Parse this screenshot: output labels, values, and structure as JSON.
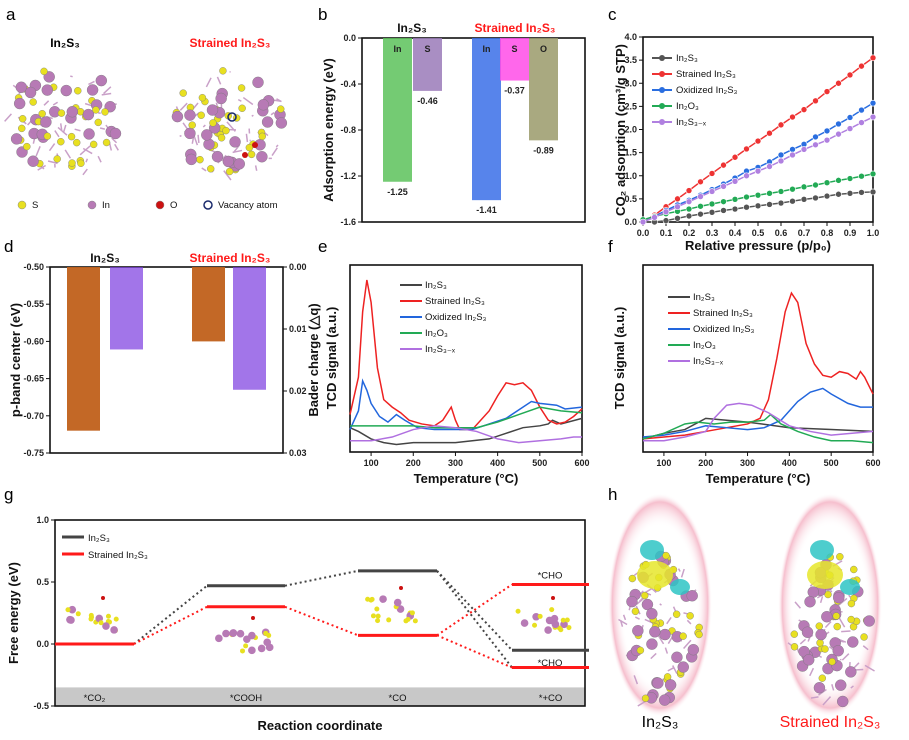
{
  "panels": {
    "a": "a",
    "b": "b",
    "c": "c",
    "d": "d",
    "e": "e",
    "f": "f",
    "g": "g",
    "h": "h"
  },
  "colors": {
    "accent_red": "#ff1a1a",
    "black": "#444444",
    "S_atom": "#e8e020",
    "In_atom": "#b77ab5",
    "O_atom": "#cc1111",
    "vacancy": "#1a2a6c",
    "isosurface_yellow": "#e6e62a",
    "isosurface_cyan": "#2ec4c4",
    "halo": "#f5b8c8"
  },
  "panel_a": {
    "labels": [
      "In₂S₃",
      "Strained In₂S₃"
    ],
    "legend": [
      {
        "label": "S",
        "icon": "yellow-sphere"
      },
      {
        "label": "In",
        "icon": "purple-sphere"
      },
      {
        "label": "O",
        "icon": "red-sphere"
      },
      {
        "label": "Vacancy atom",
        "icon": "hollow-circle"
      }
    ]
  },
  "panel_h": {
    "labels": [
      "In₂S₃",
      "Strained In₂S₃"
    ]
  },
  "chart_data": [
    {
      "id": "b",
      "type": "bar",
      "ylabel": "Adsorption energy (eV)",
      "ylim": [
        -1.6,
        0
      ],
      "yticks": [
        "0.0",
        "-0.4",
        "-0.8",
        "-1.2",
        "-1.6"
      ],
      "groups": [
        {
          "name": "In₂S₃",
          "bars": [
            {
              "site": "In",
              "value": -1.25,
              "label": "-1.25",
              "color": "#5cc25a"
            },
            {
              "site": "S",
              "value": -0.46,
              "label": "-0.46",
              "color": "#9a7ab8"
            }
          ]
        },
        {
          "name": "Strained In₂S₃",
          "bars": [
            {
              "site": "In",
              "value": -1.41,
              "label": "-1.41",
              "color": "#3a6ee8"
            },
            {
              "site": "S",
              "value": -0.37,
              "label": "-0.37",
              "color": "#ff4ce8"
            },
            {
              "site": "O",
              "value": -0.89,
              "label": "-0.89",
              "color": "#9a9a6a"
            }
          ]
        }
      ]
    },
    {
      "id": "c",
      "type": "line",
      "xlabel": "Relative pressure (p/p₀)",
      "ylabel": "CO₂ adsorption (cm³/g STP)",
      "xlim": [
        0,
        1
      ],
      "ylim": [
        0,
        4
      ],
      "xticks": [
        "0.0",
        "0.1",
        "0.2",
        "0.3",
        "0.4",
        "0.5",
        "0.6",
        "0.7",
        "0.8",
        "0.9",
        "1.0"
      ],
      "yticks": [
        "0.0",
        "0.5",
        "1.0",
        "1.5",
        "2.0",
        "2.5",
        "3.0",
        "3.5",
        "4.0"
      ],
      "legend": "top-left",
      "x": [
        0,
        0.05,
        0.1,
        0.15,
        0.2,
        0.25,
        0.3,
        0.35,
        0.4,
        0.45,
        0.5,
        0.55,
        0.6,
        0.65,
        0.7,
        0.75,
        0.8,
        0.85,
        0.9,
        0.95,
        1.0
      ],
      "series": [
        {
          "name": "In₂S₃",
          "color": "#555555",
          "values": [
            0,
            0,
            0.03,
            0.08,
            0.13,
            0.17,
            0.21,
            0.25,
            0.28,
            0.32,
            0.35,
            0.38,
            0.41,
            0.45,
            0.49,
            0.52,
            0.56,
            0.6,
            0.62,
            0.64,
            0.65
          ]
        },
        {
          "name": "Strained In₂S₃",
          "color": "#ee3333",
          "values": [
            0,
            0.15,
            0.33,
            0.5,
            0.68,
            0.87,
            1.05,
            1.23,
            1.4,
            1.58,
            1.75,
            1.92,
            2.1,
            2.27,
            2.43,
            2.62,
            2.82,
            3.0,
            3.18,
            3.37,
            3.55
          ]
        },
        {
          "name": "Oxidized In₂S₃",
          "color": "#2a6ee0",
          "values": [
            0,
            0.12,
            0.25,
            0.37,
            0.47,
            0.58,
            0.7,
            0.82,
            0.95,
            1.1,
            1.18,
            1.3,
            1.45,
            1.57,
            1.68,
            1.84,
            1.97,
            2.12,
            2.26,
            2.42,
            2.57
          ]
        },
        {
          "name": "In₂O₃",
          "color": "#22aa55",
          "values": [
            0.05,
            0.12,
            0.18,
            0.23,
            0.28,
            0.34,
            0.39,
            0.44,
            0.49,
            0.54,
            0.58,
            0.62,
            0.66,
            0.71,
            0.76,
            0.8,
            0.85,
            0.9,
            0.94,
            0.99,
            1.04
          ]
        },
        {
          "name": "In₂S₃₋ₓ",
          "color": "#b080e0",
          "values": [
            0,
            0.1,
            0.22,
            0.33,
            0.44,
            0.55,
            0.66,
            0.77,
            0.88,
            1.0,
            1.1,
            1.2,
            1.32,
            1.45,
            1.57,
            1.67,
            1.77,
            1.9,
            2.02,
            2.15,
            2.27
          ]
        }
      ]
    },
    {
      "id": "d",
      "type": "bar",
      "ylabel": "p-band center (eV)",
      "y2label": "Bader charge (△q)",
      "ylim": [
        -0.75,
        -0.5
      ],
      "y2lim": [
        0,
        0.03
      ],
      "yticks": [
        "-0.50",
        "-0.55",
        "-0.60",
        "-0.65",
        "-0.70",
        "-0.75"
      ],
      "y2ticks": [
        "0.00",
        "0.01",
        "0.02",
        "0.03"
      ],
      "categories": [
        "In₂S₃",
        "Strained In₂S₃"
      ],
      "series": [
        {
          "axis": "left",
          "color": "#c0601a",
          "values": [
            -0.72,
            -0.6
          ]
        },
        {
          "axis": "right",
          "color": "#7a3ae0",
          "values": [
            0.0133,
            0.0198
          ]
        }
      ]
    },
    {
      "id": "e",
      "type": "line",
      "xlabel": "Temperature (°C)",
      "ylabel": "TCD signal (a.u.)",
      "xlim": [
        50,
        600
      ],
      "ylim": [
        0,
        100
      ],
      "xticks": [
        "100",
        "200",
        "300",
        "400",
        "500",
        "600"
      ],
      "legend": "top-right",
      "series": [
        {
          "name": "In₂S₃",
          "color": "#444444",
          "points": [
            [
              50,
              13
            ],
            [
              70,
              11
            ],
            [
              100,
              7
            ],
            [
              130,
              5
            ],
            [
              160,
              4
            ],
            [
              200,
              5
            ],
            [
              300,
              5
            ],
            [
              380,
              7
            ],
            [
              420,
              10
            ],
            [
              460,
              13
            ],
            [
              500,
              14
            ],
            [
              520,
              15
            ],
            [
              530,
              17
            ],
            [
              550,
              15
            ],
            [
              600,
              18
            ]
          ]
        },
        {
          "name": "Strained In₂S₃",
          "color": "#ee2222",
          "points": [
            [
              50,
              20
            ],
            [
              70,
              40
            ],
            [
              80,
              75
            ],
            [
              90,
              92
            ],
            [
              100,
              80
            ],
            [
              115,
              45
            ],
            [
              130,
              28
            ],
            [
              150,
              24
            ],
            [
              170,
              21
            ],
            [
              190,
              17
            ],
            [
              220,
              15
            ],
            [
              250,
              14
            ],
            [
              270,
              17
            ],
            [
              290,
              24
            ],
            [
              300,
              17
            ],
            [
              310,
              12
            ],
            [
              340,
              12
            ],
            [
              380,
              22
            ],
            [
              400,
              30
            ],
            [
              420,
              37
            ],
            [
              440,
              36
            ],
            [
              460,
              37
            ],
            [
              480,
              33
            ],
            [
              500,
              24
            ],
            [
              520,
              17
            ],
            [
              540,
              15
            ],
            [
              560,
              16
            ],
            [
              580,
              19
            ],
            [
              600,
              23
            ]
          ]
        },
        {
          "name": "Oxidized In₂S₃",
          "color": "#2266dd",
          "points": [
            [
              50,
              12
            ],
            [
              70,
              22
            ],
            [
              80,
              38
            ],
            [
              90,
              33
            ],
            [
              100,
              26
            ],
            [
              120,
              19
            ],
            [
              140,
              16
            ],
            [
              160,
              20
            ],
            [
              180,
              17
            ],
            [
              210,
              13
            ],
            [
              250,
              12
            ],
            [
              300,
              12
            ],
            [
              340,
              12
            ],
            [
              380,
              15
            ],
            [
              420,
              18
            ],
            [
              460,
              24
            ],
            [
              480,
              27
            ],
            [
              500,
              26
            ],
            [
              540,
              25
            ],
            [
              560,
              23
            ],
            [
              600,
              24
            ]
          ]
        },
        {
          "name": "In₂O₃",
          "color": "#22aa55",
          "points": [
            [
              50,
              14
            ],
            [
              100,
              14
            ],
            [
              150,
              14
            ],
            [
              200,
              14
            ],
            [
              250,
              13
            ],
            [
              300,
              13
            ],
            [
              350,
              13
            ],
            [
              400,
              16
            ],
            [
              450,
              20
            ],
            [
              500,
              24
            ],
            [
              550,
              22
            ],
            [
              600,
              21
            ]
          ]
        },
        {
          "name": "In₂S₃₋ₓ",
          "color": "#b070e0",
          "points": [
            [
              50,
              6
            ],
            [
              100,
              6
            ],
            [
              150,
              8
            ],
            [
              200,
              12
            ],
            [
              250,
              14
            ],
            [
              300,
              13
            ],
            [
              350,
              11
            ],
            [
              400,
              7
            ],
            [
              450,
              5
            ],
            [
              500,
              6
            ],
            [
              550,
              7
            ],
            [
              580,
              8
            ],
            [
              600,
              8
            ]
          ]
        }
      ]
    },
    {
      "id": "f",
      "type": "line",
      "xlabel": "Temperature (°C)",
      "ylabel": "TCD signal (a.u.)",
      "xlim": [
        50,
        600
      ],
      "ylim": [
        0,
        100
      ],
      "xticks": [
        "100",
        "200",
        "300",
        "400",
        "500",
        "600"
      ],
      "legend": "top-left",
      "series": [
        {
          "name": "In₂S₃",
          "color": "#444444",
          "points": [
            [
              50,
              7
            ],
            [
              100,
              10
            ],
            [
              150,
              12
            ],
            [
              200,
              18
            ],
            [
              250,
              17
            ],
            [
              300,
              16
            ],
            [
              400,
              13
            ],
            [
              500,
              12
            ],
            [
              600,
              11
            ]
          ]
        },
        {
          "name": "Strained In₂S₃",
          "color": "#ee2222",
          "points": [
            [
              50,
              7
            ],
            [
              100,
              8
            ],
            [
              150,
              9
            ],
            [
              200,
              11
            ],
            [
              250,
              13
            ],
            [
              300,
              15
            ],
            [
              330,
              18
            ],
            [
              350,
              28
            ],
            [
              370,
              50
            ],
            [
              390,
              75
            ],
            [
              405,
              85
            ],
            [
              420,
              80
            ],
            [
              440,
              58
            ],
            [
              460,
              47
            ],
            [
              480,
              41
            ],
            [
              500,
              40
            ],
            [
              520,
              43
            ],
            [
              540,
              42
            ],
            [
              560,
              39
            ],
            [
              570,
              43
            ],
            [
              580,
              40
            ],
            [
              600,
              31
            ]
          ]
        },
        {
          "name": "Oxidized In₂S₃",
          "color": "#2266dd",
          "points": [
            [
              50,
              8
            ],
            [
              100,
              9
            ],
            [
              150,
              11
            ],
            [
              200,
              14
            ],
            [
              250,
              13
            ],
            [
              300,
              12
            ],
            [
              340,
              13
            ],
            [
              380,
              17
            ],
            [
              420,
              27
            ],
            [
              450,
              32
            ],
            [
              480,
              34
            ],
            [
              500,
              31
            ],
            [
              540,
              26
            ],
            [
              570,
              24
            ],
            [
              600,
              24
            ]
          ]
        },
        {
          "name": "In₂O₃",
          "color": "#22aa55",
          "points": [
            [
              50,
              7
            ],
            [
              100,
              10
            ],
            [
              150,
              15
            ],
            [
              180,
              16
            ],
            [
              220,
              15
            ],
            [
              260,
              16
            ],
            [
              300,
              16
            ],
            [
              340,
              17
            ],
            [
              355,
              20
            ],
            [
              380,
              15
            ],
            [
              420,
              11
            ],
            [
              460,
              8
            ],
            [
              500,
              6
            ],
            [
              550,
              6
            ],
            [
              600,
              5
            ]
          ]
        },
        {
          "name": "In₂S₃₋ₓ",
          "color": "#b070e0",
          "points": [
            [
              50,
              6
            ],
            [
              100,
              6
            ],
            [
              150,
              8
            ],
            [
              200,
              11
            ],
            [
              220,
              18
            ],
            [
              250,
              25
            ],
            [
              280,
              26
            ],
            [
              310,
              25
            ],
            [
              350,
              21
            ],
            [
              400,
              14
            ],
            [
              450,
              11
            ],
            [
              500,
              9
            ],
            [
              550,
              10
            ],
            [
              600,
              11
            ]
          ]
        }
      ]
    },
    {
      "id": "g",
      "type": "line",
      "ylabel": "Free energy (eV)",
      "xlabel": "Reaction coordinate",
      "ylim": [
        -0.5,
        1.0
      ],
      "yticks": [
        "1.0",
        "0.5",
        "0.0",
        "-0.5"
      ],
      "legend": "top-left",
      "states": [
        "*CO₂",
        "*COOH",
        "*CO",
        "*+CO"
      ],
      "series": [
        {
          "name": "In₂S₃",
          "color": "#444444",
          "levels": [
            0,
            0.47,
            0.59,
            -0.19
          ],
          "cho": -0.05,
          "cho_label": "*CHO"
        },
        {
          "name": "Strained In₂S₃",
          "color": "#ff1a1a",
          "levels": [
            0,
            0.3,
            0.07,
            -0.19
          ],
          "cho": 0.48,
          "cho_label": "*CHO"
        }
      ]
    }
  ]
}
